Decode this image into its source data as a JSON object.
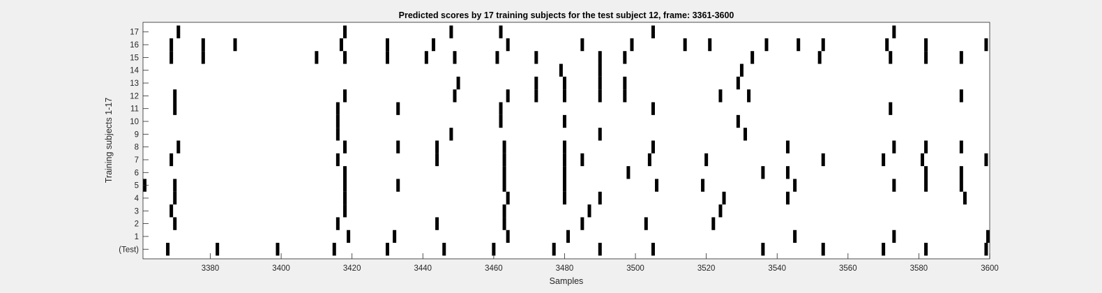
{
  "chart_data": {
    "type": "scatter",
    "title": "Predicted scores by 17 training subjects for the test subject 12, frame: 3361-3600",
    "xlabel": "Samples",
    "ylabel": "Training subjects 1-17",
    "xlim": [
      3361,
      3600
    ],
    "xticks": [
      3380,
      3400,
      3420,
      3440,
      3460,
      3480,
      3500,
      3520,
      3540,
      3560,
      3580,
      3600
    ],
    "rows": [
      "(Test)",
      "1",
      "2",
      "3",
      "4",
      "5",
      "6",
      "7",
      "8",
      "9",
      "10",
      "11",
      "12",
      "13",
      "14",
      "15",
      "16",
      "17"
    ],
    "grid": false,
    "legend": "none",
    "mark_color": "#000000",
    "series": [
      {
        "row": "(Test)",
        "x": [
          3368,
          3382,
          3399,
          3415,
          3430,
          3446,
          3460,
          3477,
          3490,
          3505,
          3536,
          3553,
          3570,
          3582,
          3599
        ]
      },
      {
        "row": "1",
        "x": [
          3419,
          3432,
          3464,
          3481,
          3545,
          3573,
          3600
        ]
      },
      {
        "row": "2",
        "x": [
          3370,
          3416,
          3444,
          3463,
          3485,
          3503,
          3522
        ]
      },
      {
        "row": "3",
        "x": [
          3369,
          3418,
          3463,
          3487,
          3524
        ]
      },
      {
        "row": "4",
        "x": [
          3370,
          3418,
          3464,
          3480,
          3490,
          3525,
          3543,
          3593
        ]
      },
      {
        "row": "5",
        "x": [
          3361,
          3370,
          3418,
          3433,
          3463,
          3480,
          3506,
          3519,
          3545,
          3573,
          3582,
          3592
        ]
      },
      {
        "row": "6",
        "x": [
          3418,
          3463,
          3480,
          3498,
          3536,
          3543,
          3582,
          3592
        ]
      },
      {
        "row": "7",
        "x": [
          3369,
          3416,
          3444,
          3463,
          3480,
          3485,
          3504,
          3520,
          3553,
          3570,
          3581,
          3599
        ]
      },
      {
        "row": "8",
        "x": [
          3371,
          3418,
          3433,
          3444,
          3463,
          3480,
          3505,
          3543,
          3573,
          3582,
          3592
        ]
      },
      {
        "row": "9",
        "x": [
          3416,
          3448,
          3490,
          3531
        ]
      },
      {
        "row": "10",
        "x": [
          3416,
          3462,
          3480,
          3529
        ]
      },
      {
        "row": "11",
        "x": [
          3370,
          3416,
          3433,
          3462,
          3505,
          3572
        ]
      },
      {
        "row": "12",
        "x": [
          3370,
          3418,
          3449,
          3464,
          3472,
          3480,
          3490,
          3497,
          3524,
          3532,
          3592
        ]
      },
      {
        "row": "13",
        "x": [
          3450,
          3472,
          3480,
          3490,
          3497,
          3529
        ]
      },
      {
        "row": "14",
        "x": [
          3479,
          3490,
          3530
        ]
      },
      {
        "row": "15",
        "x": [
          3369,
          3378,
          3410,
          3418,
          3430,
          3441,
          3449,
          3461,
          3472,
          3490,
          3497,
          3533,
          3552,
          3572,
          3582,
          3592
        ]
      },
      {
        "row": "16",
        "x": [
          3369,
          3378,
          3387,
          3417,
          3430,
          3443,
          3464,
          3485,
          3499,
          3514,
          3521,
          3537,
          3546,
          3553,
          3571,
          3582,
          3599
        ]
      },
      {
        "row": "17",
        "x": [
          3371,
          3418,
          3448,
          3462,
          3505,
          3573
        ]
      }
    ]
  }
}
